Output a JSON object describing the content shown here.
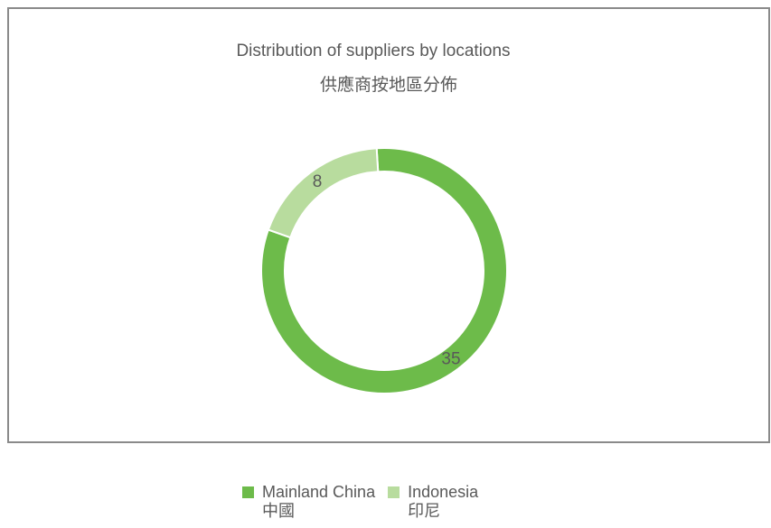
{
  "chart_data": {
    "type": "donut",
    "title": "Distribution of suppliers by locations",
    "subtitle": "供應商按地區分佈",
    "categories": [
      "Mainland China\n中國",
      "Indonesia\n印尼"
    ],
    "values": [
      35,
      8
    ],
    "colors": [
      "#6dbb4a",
      "#b8dc9e"
    ]
  }
}
